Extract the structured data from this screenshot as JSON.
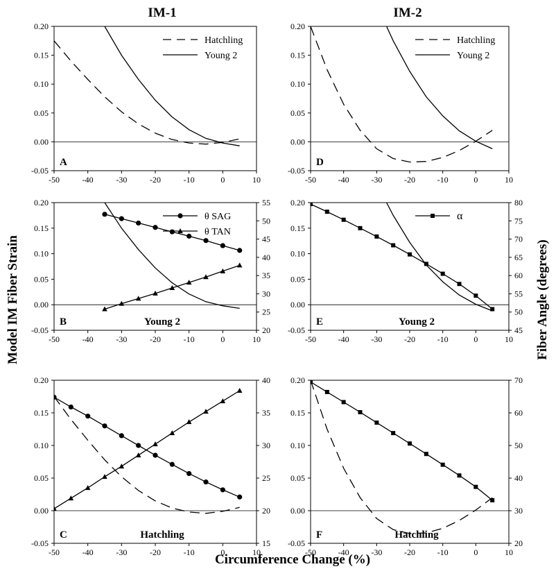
{
  "figure": {
    "col_titles": [
      "IM-1",
      "IM-2"
    ],
    "ylabel_left": "Model IM Fiber Strain",
    "ylabel_right": "Fiber Angle (degrees)",
    "xlabel": "Circumference Change (%)"
  },
  "chart_data": [
    {
      "id": "A",
      "type": "line",
      "panel_label": "A",
      "column_title": "IM-1",
      "xlim": [
        -50,
        10
      ],
      "xticks": [
        "-50",
        "-40",
        "-30",
        "-20",
        "-10",
        "0",
        "10"
      ],
      "ylim": [
        -0.05,
        0.2
      ],
      "yticks": [
        "-0.05",
        "0.00",
        "0.05",
        "0.10",
        "0.15",
        "0.20"
      ],
      "legend": "top-right",
      "series": [
        {
          "name": "Hatchling",
          "style": "dashed",
          "x": [
            -50,
            -45,
            -40,
            -35,
            -30,
            -25,
            -20,
            -15,
            -10,
            -5,
            0,
            5
          ],
          "y": [
            0.175,
            0.14,
            0.108,
            0.078,
            0.052,
            0.031,
            0.015,
            0.004,
            -0.002,
            -0.004,
            -0.001,
            0.005
          ]
        },
        {
          "name": "Young 2",
          "style": "solid",
          "x": [
            -35,
            -30,
            -25,
            -20,
            -15,
            -10,
            -5,
            0,
            5
          ],
          "y": [
            0.2,
            0.15,
            0.108,
            0.072,
            0.043,
            0.021,
            0.006,
            -0.002,
            -0.007
          ]
        }
      ]
    },
    {
      "id": "D",
      "type": "line",
      "panel_label": "D",
      "column_title": "IM-2",
      "xlim": [
        -50,
        10
      ],
      "xticks": [
        "-50",
        "-40",
        "-30",
        "-20",
        "-10",
        "0",
        "10"
      ],
      "ylim": [
        -0.05,
        0.2
      ],
      "yticks": [
        "-0.05",
        "0.00",
        "0.05",
        "0.10",
        "0.15",
        "0.20"
      ],
      "legend": "top-right",
      "series": [
        {
          "name": "Hatchling",
          "style": "dashed",
          "x": [
            -50,
            -45,
            -40,
            -35,
            -30,
            -25,
            -20,
            -15,
            -10,
            -5,
            0,
            5
          ],
          "y": [
            0.2,
            0.125,
            0.065,
            0.02,
            -0.012,
            -0.029,
            -0.035,
            -0.034,
            -0.027,
            -0.015,
            0.001,
            0.02
          ]
        },
        {
          "name": "Young 2",
          "style": "solid",
          "x": [
            -27,
            -25,
            -20,
            -15,
            -10,
            -5,
            0,
            5
          ],
          "y": [
            0.2,
            0.175,
            0.122,
            0.078,
            0.045,
            0.019,
            0.001,
            -0.012
          ]
        }
      ]
    },
    {
      "id": "B",
      "type": "line",
      "panel_label": "B",
      "panel_name": "Young 2",
      "xlim": [
        -50,
        10
      ],
      "xticks": [
        "-50",
        "-40",
        "-30",
        "-20",
        "-10",
        "0",
        "10"
      ],
      "ylim": [
        -0.05,
        0.2
      ],
      "yticks": [
        "-0.05",
        "0.00",
        "0.05",
        "0.10",
        "0.15",
        "0.20"
      ],
      "y2lim": [
        20,
        55
      ],
      "y2ticks": [
        "20",
        "25",
        "30",
        "35",
        "40",
        "45",
        "50",
        "55"
      ],
      "legend": "top-right",
      "series": [
        {
          "axis": "left",
          "style": "solid",
          "x": [
            -35,
            -30,
            -25,
            -20,
            -15,
            -10,
            -5,
            0,
            5
          ],
          "y": [
            0.2,
            0.15,
            0.108,
            0.072,
            0.043,
            0.021,
            0.006,
            -0.002,
            -0.007
          ]
        },
        {
          "name": "θ SAG",
          "axis": "right",
          "marker": "circle",
          "x": [
            -35,
            -30,
            -25,
            -20,
            -15,
            -10,
            -5,
            0,
            5
          ],
          "y": [
            51.8,
            50.6,
            49.4,
            48.2,
            47.0,
            45.8,
            44.6,
            43.2,
            41.9
          ]
        },
        {
          "name": "θ TAN",
          "axis": "right",
          "marker": "triangle",
          "x": [
            -35,
            -30,
            -25,
            -20,
            -15,
            -10,
            -5,
            0,
            5
          ],
          "y": [
            25.8,
            27.3,
            28.7,
            30.1,
            31.6,
            33.1,
            34.6,
            36.2,
            37.8
          ]
        }
      ]
    },
    {
      "id": "E",
      "type": "line",
      "panel_label": "E",
      "panel_name": "Young 2",
      "xlim": [
        -50,
        10
      ],
      "xticks": [
        "-50",
        "-40",
        "-30",
        "-20",
        "-10",
        "0",
        "10"
      ],
      "ylim": [
        -0.05,
        0.2
      ],
      "yticks": [
        "-0.05",
        "0.00",
        "0.05",
        "0.10",
        "0.15",
        "0.20"
      ],
      "y2lim": [
        45,
        80
      ],
      "y2ticks": [
        "45",
        "50",
        "55",
        "60",
        "65",
        "70",
        "75",
        "80"
      ],
      "legend": "top-right",
      "series": [
        {
          "axis": "left",
          "style": "solid",
          "x": [
            -27,
            -25,
            -20,
            -15,
            -10,
            -5,
            0,
            5
          ],
          "y": [
            0.2,
            0.175,
            0.122,
            0.078,
            0.045,
            0.019,
            0.001,
            -0.012
          ]
        },
        {
          "name": "α",
          "axis": "right",
          "marker": "square",
          "x": [
            -50,
            -45,
            -40,
            -35,
            -30,
            -25,
            -20,
            -15,
            -10,
            -5,
            0,
            5
          ],
          "y": [
            79.6,
            77.5,
            75.3,
            73.0,
            70.7,
            68.3,
            65.8,
            63.2,
            60.5,
            57.7,
            54.5,
            50.8
          ]
        }
      ]
    },
    {
      "id": "C",
      "type": "line",
      "panel_label": "C",
      "panel_name": "Hatchling",
      "xlim": [
        -50,
        10
      ],
      "xticks": [
        "-50",
        "-40",
        "-30",
        "-20",
        "-10",
        "0",
        "10"
      ],
      "ylim": [
        -0.05,
        0.2
      ],
      "yticks": [
        "-0.05",
        "0.00",
        "0.05",
        "0.10",
        "0.15",
        "0.20"
      ],
      "y2lim": [
        15,
        40
      ],
      "y2ticks": [
        "15",
        "20",
        "25",
        "30",
        "35",
        "40"
      ],
      "series": [
        {
          "axis": "left",
          "style": "dashed",
          "x": [
            -50,
            -45,
            -40,
            -35,
            -30,
            -25,
            -20,
            -15,
            -10,
            -5,
            0,
            5
          ],
          "y": [
            0.175,
            0.14,
            0.108,
            0.078,
            0.052,
            0.031,
            0.015,
            0.004,
            -0.002,
            -0.004,
            -0.001,
            0.005
          ]
        },
        {
          "name": "θ SAG",
          "axis": "right",
          "marker": "circle",
          "x": [
            -50,
            -45,
            -40,
            -35,
            -30,
            -25,
            -20,
            -15,
            -10,
            -5,
            0,
            5
          ],
          "y": [
            37.4,
            35.9,
            34.5,
            33.0,
            31.5,
            30.0,
            28.5,
            27.1,
            25.7,
            24.4,
            23.2,
            22.1
          ]
        },
        {
          "name": "θ TAN",
          "axis": "right",
          "marker": "triangle",
          "x": [
            -50,
            -45,
            -40,
            -35,
            -30,
            -25,
            -20,
            -15,
            -10,
            -5,
            0,
            5
          ],
          "y": [
            20.3,
            21.9,
            23.5,
            25.2,
            26.8,
            28.5,
            30.2,
            31.9,
            33.6,
            35.2,
            36.8,
            38.4
          ]
        }
      ]
    },
    {
      "id": "F",
      "type": "line",
      "panel_label": "F",
      "panel_name": "Hatchling",
      "xlim": [
        -50,
        10
      ],
      "xticks": [
        "-50",
        "-40",
        "-30",
        "-20",
        "-10",
        "0",
        "10"
      ],
      "ylim": [
        -0.05,
        0.2
      ],
      "yticks": [
        "-0.05",
        "0.00",
        "0.05",
        "0.10",
        "0.15",
        "0.20"
      ],
      "y2lim": [
        20,
        70
      ],
      "y2ticks": [
        "20",
        "30",
        "40",
        "50",
        "60",
        "70"
      ],
      "series": [
        {
          "axis": "left",
          "style": "dashed",
          "x": [
            -50,
            -45,
            -40,
            -35,
            -30,
            -25,
            -20,
            -15,
            -10,
            -5,
            0,
            5
          ],
          "y": [
            0.2,
            0.125,
            0.065,
            0.02,
            -0.012,
            -0.029,
            -0.035,
            -0.034,
            -0.027,
            -0.015,
            0.001,
            0.02
          ]
        },
        {
          "name": "α",
          "axis": "right",
          "marker": "square",
          "x": [
            -50,
            -45,
            -40,
            -35,
            -30,
            -25,
            -20,
            -15,
            -10,
            -5,
            0,
            5
          ],
          "y": [
            69.5,
            66.4,
            63.3,
            60.2,
            57.0,
            53.8,
            50.6,
            47.4,
            44.1,
            40.8,
            37.3,
            33.2
          ]
        }
      ]
    }
  ]
}
